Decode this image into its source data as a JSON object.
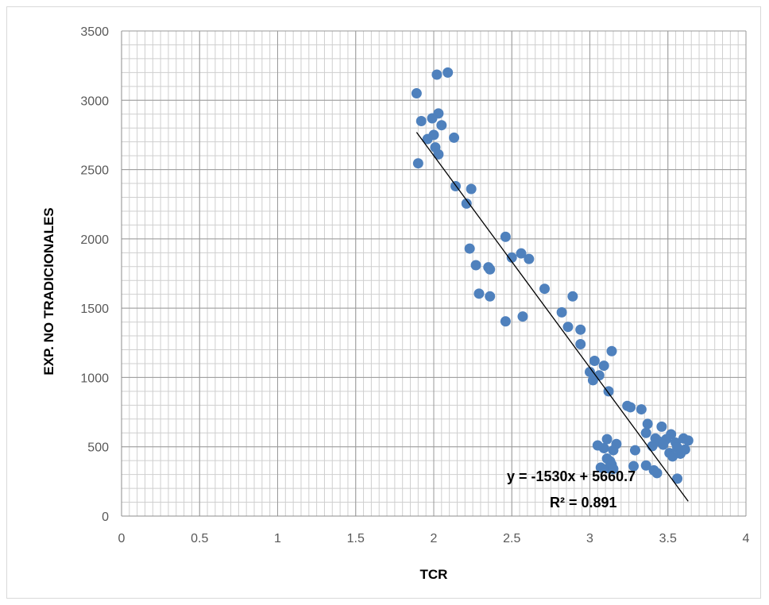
{
  "chart_data": {
    "type": "scatter",
    "xlabel": "TCR",
    "ylabel": "EXP. NO TRADICIONALES",
    "xlim": [
      0,
      4
    ],
    "ylim": [
      0,
      3500
    ],
    "x_ticks": [
      "0",
      "0.5",
      "1",
      "1.5",
      "2",
      "2.5",
      "3",
      "3.5",
      "4"
    ],
    "y_ticks": [
      "0",
      "500",
      "1000",
      "1500",
      "2000",
      "2500",
      "3000",
      "3500"
    ],
    "grid": true,
    "marker_color": "#4f81bd",
    "trendline": {
      "slope": -1530,
      "intercept": 5660.7,
      "x_range": [
        1.89,
        3.63
      ]
    },
    "equation": "y = -1530x + 5660.7",
    "r_squared": "R² = 0.891",
    "points": [
      [
        1.89,
        3050
      ],
      [
        2.02,
        3185
      ],
      [
        2.09,
        3200
      ],
      [
        2.03,
        2905
      ],
      [
        1.99,
        2870
      ],
      [
        1.92,
        2850
      ],
      [
        2.05,
        2820
      ],
      [
        2.0,
        2750
      ],
      [
        1.96,
        2720
      ],
      [
        2.13,
        2730
      ],
      [
        2.01,
        2660
      ],
      [
        2.03,
        2610
      ],
      [
        1.9,
        2545
      ],
      [
        2.14,
        2380
      ],
      [
        2.24,
        2360
      ],
      [
        2.21,
        2255
      ],
      [
        2.46,
        2015
      ],
      [
        2.23,
        1930
      ],
      [
        2.56,
        1895
      ],
      [
        2.5,
        1865
      ],
      [
        2.61,
        1855
      ],
      [
        2.27,
        1810
      ],
      [
        2.35,
        1795
      ],
      [
        2.36,
        1780
      ],
      [
        2.71,
        1640
      ],
      [
        2.29,
        1605
      ],
      [
        2.36,
        1585
      ],
      [
        2.89,
        1585
      ],
      [
        2.82,
        1470
      ],
      [
        2.57,
        1440
      ],
      [
        2.46,
        1405
      ],
      [
        2.86,
        1365
      ],
      [
        2.94,
        1345
      ],
      [
        2.94,
        1240
      ],
      [
        3.14,
        1190
      ],
      [
        3.03,
        1120
      ],
      [
        3.09,
        1085
      ],
      [
        3.0,
        1040
      ],
      [
        3.06,
        1015
      ],
      [
        3.02,
        980
      ],
      [
        3.12,
        900
      ],
      [
        3.24,
        795
      ],
      [
        3.26,
        785
      ],
      [
        3.33,
        770
      ],
      [
        3.37,
        665
      ],
      [
        3.46,
        645
      ],
      [
        3.36,
        600
      ],
      [
        3.52,
        590
      ],
      [
        3.42,
        560
      ],
      [
        3.6,
        560
      ],
      [
        3.49,
        555
      ],
      [
        3.63,
        545
      ],
      [
        3.11,
        555
      ],
      [
        3.44,
        540
      ],
      [
        3.55,
        530
      ],
      [
        3.17,
        520
      ],
      [
        3.05,
        510
      ],
      [
        3.4,
        505
      ],
      [
        3.47,
        515
      ],
      [
        3.09,
        490
      ],
      [
        3.56,
        495
      ],
      [
        3.15,
        475
      ],
      [
        3.29,
        475
      ],
      [
        3.61,
        480
      ],
      [
        3.51,
        455
      ],
      [
        3.58,
        450
      ],
      [
        3.53,
        430
      ],
      [
        3.11,
        415
      ],
      [
        3.13,
        395
      ],
      [
        3.14,
        370
      ],
      [
        3.28,
        360
      ],
      [
        3.07,
        350
      ],
      [
        3.12,
        345
      ],
      [
        3.15,
        340
      ],
      [
        3.41,
        330
      ],
      [
        3.43,
        310
      ],
      [
        3.56,
        270
      ],
      [
        3.36,
        365
      ]
    ]
  }
}
